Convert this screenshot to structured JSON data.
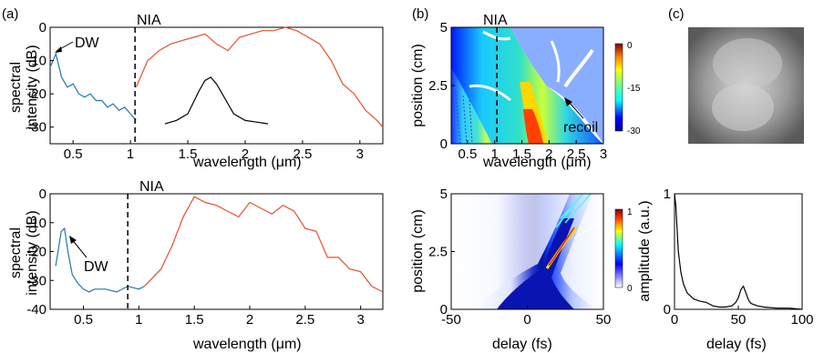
{
  "panel_labels": {
    "a": "(a)",
    "b": "(b)",
    "c": "(c)"
  },
  "chart_data": [
    {
      "id": "a-top",
      "type": "line",
      "xlabel": "wavelength (μm)",
      "ylabel": "spectral intensity (dB)",
      "xlim": [
        0.3,
        3.2
      ],
      "ylim": [
        -35,
        0
      ],
      "xticks": [
        0.5,
        1,
        1.5,
        2,
        2.5,
        3
      ],
      "yticks": [
        0,
        -10,
        -20,
        -30
      ],
      "annotations": [
        {
          "text": "DW"
        },
        {
          "text": "NIA"
        }
      ],
      "series": [
        {
          "color": "#1f77b4",
          "x": [
            0.3,
            0.35,
            0.4,
            0.45,
            0.5,
            0.55,
            0.6,
            0.65,
            0.7,
            0.75,
            0.8,
            0.85,
            0.9,
            0.95,
            1.0,
            1.05
          ],
          "y": [
            -12,
            -8,
            -15,
            -18,
            -17,
            -20,
            -21,
            -20,
            -22,
            -22,
            -24,
            -23,
            -25,
            -24,
            -26,
            -28
          ]
        },
        {
          "color": "#e8502f",
          "x": [
            1.05,
            1.15,
            1.25,
            1.35,
            1.45,
            1.55,
            1.65,
            1.75,
            1.85,
            1.95,
            2.05,
            2.15,
            2.25,
            2.35,
            2.45,
            2.55,
            2.65,
            2.75,
            2.85,
            2.95,
            3.05,
            3.15,
            3.2
          ],
          "y": [
            -18,
            -10,
            -7,
            -5,
            -4,
            -3,
            -2,
            -5,
            -7,
            -3,
            -2,
            -1,
            -1,
            0,
            -1,
            -3,
            -5,
            -10,
            -17,
            -20,
            -25,
            -28,
            -30
          ]
        },
        {
          "color": "#000000",
          "x": [
            1.3,
            1.4,
            1.5,
            1.6,
            1.65,
            1.7,
            1.75,
            1.8,
            1.9,
            2.0,
            2.1,
            2.2
          ],
          "y": [
            -29,
            -28,
            -26,
            -19,
            -16,
            -15,
            -17,
            -20,
            -26,
            -28,
            -28.5,
            -29
          ]
        }
      ],
      "vline": {
        "x": 1.04
      }
    },
    {
      "id": "a-bottom",
      "type": "line",
      "xlabel": "wavelength (μm)",
      "ylabel": "spectral intensity (dB)",
      "xlim": [
        0.2,
        3.2
      ],
      "ylim": [
        -40,
        0
      ],
      "xticks": [
        0.5,
        1,
        1.5,
        2,
        2.5,
        3
      ],
      "yticks": [
        0,
        -10,
        -20,
        -30,
        -40
      ],
      "annotations": [
        {
          "text": "DW"
        },
        {
          "text": "NIA"
        }
      ],
      "series": [
        {
          "color": "#1f77b4",
          "x": [
            0.25,
            0.28,
            0.3,
            0.33,
            0.36,
            0.4,
            0.45,
            0.5,
            0.55,
            0.6,
            0.7,
            0.8,
            0.9,
            1.0,
            1.05
          ],
          "y": [
            -25,
            -18,
            -13,
            -12,
            -20,
            -28,
            -31,
            -33,
            -34,
            -33,
            -33,
            -34,
            -32,
            -33,
            -32
          ]
        },
        {
          "color": "#e8502f",
          "x": [
            1.05,
            1.1,
            1.2,
            1.3,
            1.4,
            1.5,
            1.6,
            1.7,
            1.8,
            1.9,
            2.0,
            2.1,
            2.2,
            2.3,
            2.4,
            2.5,
            2.6,
            2.7,
            2.8,
            2.9,
            3.0,
            3.1,
            3.2
          ],
          "y": [
            -32,
            -30,
            -26,
            -18,
            -8,
            -1,
            -3,
            -4,
            -6,
            -8,
            -3,
            -5,
            -7,
            -4,
            -6,
            -12,
            -13,
            -22,
            -22,
            -26,
            -27,
            -32,
            -34
          ]
        }
      ],
      "vline": {
        "x": 0.9
      }
    },
    {
      "id": "b-top",
      "type": "heatmap",
      "xlabel": "wavelength (μm)",
      "ylabel": "position (cm)",
      "xlim": [
        0.2,
        3
      ],
      "ylim": [
        0,
        5
      ],
      "xticks": [
        0.5,
        1,
        1.5,
        2,
        2.5,
        3
      ],
      "yticks": [
        0,
        2.5,
        5
      ],
      "colorbar": {
        "ticks": [
          0,
          -15,
          -30
        ]
      },
      "annotations": [
        {
          "text": "recoil"
        },
        {
          "text": "NIA"
        }
      ]
    },
    {
      "id": "b-bottom",
      "type": "heatmap",
      "xlabel": "delay (fs)",
      "ylabel": "position (cm)",
      "xlim": [
        -50,
        50
      ],
      "ylim": [
        0,
        5
      ],
      "xticks": [
        -50,
        0,
        50
      ],
      "yticks": [
        0,
        2.5,
        5
      ],
      "colorbar": {
        "ticks": [
          1,
          0
        ]
      }
    },
    {
      "id": "c-bottom",
      "type": "line",
      "xlabel": "delay (fs)",
      "ylabel": "amplitude (a.u.)",
      "xlim": [
        0,
        100
      ],
      "ylim": [
        0,
        1
      ],
      "xticks": [
        0,
        50,
        100
      ],
      "yticks": [
        0,
        1
      ],
      "series": [
        {
          "color": "#000000",
          "x": [
            0,
            1,
            2,
            3,
            5,
            7,
            10,
            15,
            20,
            25,
            30,
            35,
            40,
            45,
            48,
            50,
            52,
            54,
            56,
            58,
            60,
            65,
            70,
            80,
            90,
            100
          ],
          "y": [
            1.0,
            0.9,
            0.7,
            0.5,
            0.32,
            0.22,
            0.14,
            0.09,
            0.07,
            0.06,
            0.03,
            0.02,
            0.02,
            0.03,
            0.06,
            0.1,
            0.17,
            0.2,
            0.14,
            0.08,
            0.05,
            0.03,
            0.02,
            0.01,
            0.01,
            0.0
          ]
        }
      ]
    }
  ]
}
